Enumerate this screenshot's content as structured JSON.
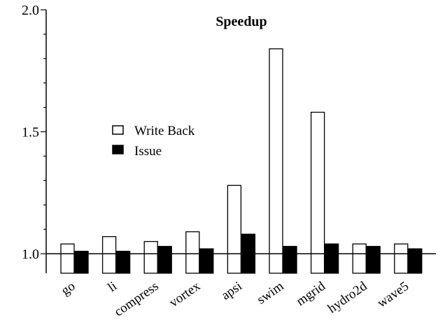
{
  "chart_data": {
    "type": "bar",
    "title": "Speedup",
    "categories": [
      "go",
      "li",
      "compress",
      "vortex",
      "apsi",
      "swim",
      "mgrid",
      "hydro2d",
      "wave5"
    ],
    "series": [
      {
        "name": "Write Back",
        "values": [
          1.04,
          1.07,
          1.05,
          1.09,
          1.28,
          1.84,
          1.58,
          1.04,
          1.04
        ],
        "fill": "#ffffff"
      },
      {
        "name": "Issue",
        "values": [
          1.01,
          1.01,
          1.03,
          1.02,
          1.08,
          1.03,
          1.04,
          1.03,
          1.02
        ],
        "fill": "#000000"
      }
    ],
    "ylim": [
      0.92,
      2.0
    ],
    "yticks_labeled": [
      "1.0",
      "1.5",
      "2.0"
    ],
    "baseline": 1.0,
    "xlabel": "",
    "ylabel": "",
    "grid": false,
    "legend_position": "left-center"
  }
}
